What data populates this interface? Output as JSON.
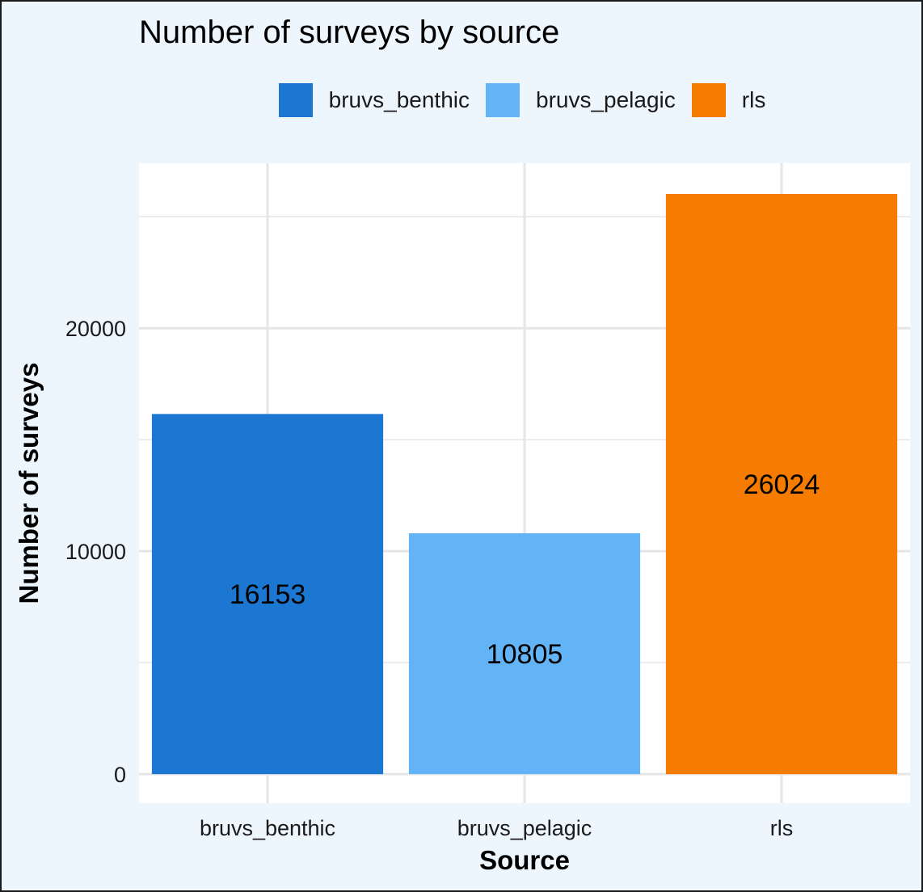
{
  "chart_data": {
    "type": "bar",
    "title": "Number of surveys by source",
    "xlabel": "Source",
    "ylabel": "Number of surveys",
    "categories": [
      "bruvs_benthic",
      "bruvs_pelagic",
      "rls"
    ],
    "values": [
      16153,
      10805,
      26024
    ],
    "data_labels": [
      "16153",
      "10805",
      "26024"
    ],
    "colors": [
      "#1b77d2",
      "#63b4f6",
      "#f57c00"
    ],
    "ylim": [
      -1300,
      27400
    ],
    "y_ticks": [
      0,
      10000,
      20000
    ],
    "y_tick_labels": [
      "0",
      "10000",
      "20000"
    ],
    "grid": true,
    "legend": {
      "position": "top",
      "entries": [
        {
          "label": "bruvs_benthic",
          "color": "#1b77d2"
        },
        {
          "label": "bruvs_pelagic",
          "color": "#63b4f6"
        },
        {
          "label": "rls",
          "color": "#f57c00"
        }
      ]
    }
  }
}
